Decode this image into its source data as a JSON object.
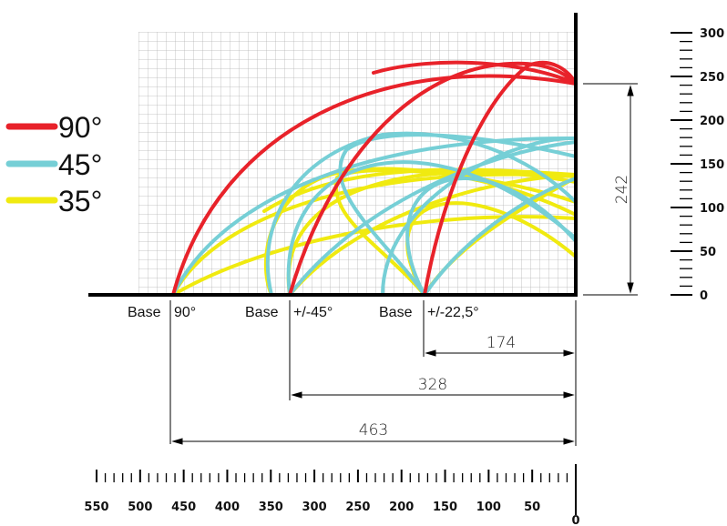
{
  "legend": [
    {
      "label": "90°",
      "color": "#e8222a"
    },
    {
      "label": "45°",
      "color": "#76cfd6"
    },
    {
      "label": "35°",
      "color": "#f0ea10"
    }
  ],
  "bases": [
    {
      "label": "Base",
      "angle": "90°",
      "x": 463
    },
    {
      "label": "Base",
      "angle": "+/-45°",
      "x": 328
    },
    {
      "label": "Base",
      "angle": "+/-22,5°",
      "x": 174
    }
  ],
  "dimensions": {
    "height": "242",
    "widths": [
      "174",
      "328",
      "463"
    ]
  },
  "vertical_scale": {
    "ticks": [
      "300",
      "250",
      "200",
      "150",
      "100",
      "50",
      "0"
    ]
  },
  "horizontal_scale": {
    "ticks": [
      "550",
      "500",
      "450",
      "400",
      "350",
      "300",
      "250",
      "200",
      "150",
      "100",
      "50",
      "0"
    ]
  }
}
